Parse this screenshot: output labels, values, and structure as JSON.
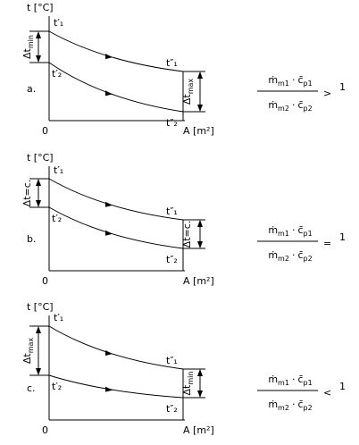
{
  "panels": [
    {
      "label": "a.",
      "y_axis": "t [°C]",
      "x_axis": "A [m²]",
      "origin": "0",
      "t1_in": "t′₁",
      "t1_out": "t″₁",
      "t2_in": "t′₂",
      "t2_out": "t″₂",
      "left_delta": {
        "main": "Δt",
        "sub": "min"
      },
      "right_delta": {
        "main": "Δt",
        "sub": "max"
      },
      "formula": {
        "num": {
          "m": "ṁ",
          "m_sub": "m1",
          "dot": "·",
          "c": "c̄",
          "c_sub": "p1"
        },
        "den": {
          "m": "ṁ",
          "m_sub": "m2",
          "dot": "·",
          "c": "c̄",
          "c_sub": "p2"
        },
        "relation": ">",
        "one": "1"
      }
    },
    {
      "label": "b.",
      "y_axis": "t [°C]",
      "x_axis": "A [m²]",
      "origin": "0",
      "t1_in": "t′₁",
      "t1_out": "t″₁",
      "t2_in": "t′₂",
      "t2_out": "t″₂",
      "left_delta": {
        "main": "Δt=c."
      },
      "right_delta": {
        "main": "Δt=c."
      },
      "formula": {
        "num": {
          "m": "ṁ",
          "m_sub": "m1",
          "dot": "·",
          "c": "c̄",
          "c_sub": "p1"
        },
        "den": {
          "m": "ṁ",
          "m_sub": "m2",
          "dot": "·",
          "c": "c̄",
          "c_sub": "p2"
        },
        "relation": "=",
        "one": "1"
      }
    },
    {
      "label": "c.",
      "y_axis": "t [°C]",
      "x_axis": "A [m²]",
      "origin": "0",
      "t1_in": "t′₁",
      "t1_out": "t″₁",
      "t2_in": "t′₂",
      "t2_out": "t″₂",
      "left_delta": {
        "main": "Δt",
        "sub": "max"
      },
      "right_delta": {
        "main": "Δt",
        "sub": "min"
      },
      "formula": {
        "num": {
          "m": "ṁ",
          "m_sub": "m1",
          "dot": "·",
          "c": "c̄",
          "c_sub": "p1"
        },
        "den": {
          "m": "ṁ",
          "m_sub": "m2",
          "dot": "·",
          "c": "c̄",
          "c_sub": "p2"
        },
        "relation": "<",
        "one": "1"
      }
    }
  ]
}
